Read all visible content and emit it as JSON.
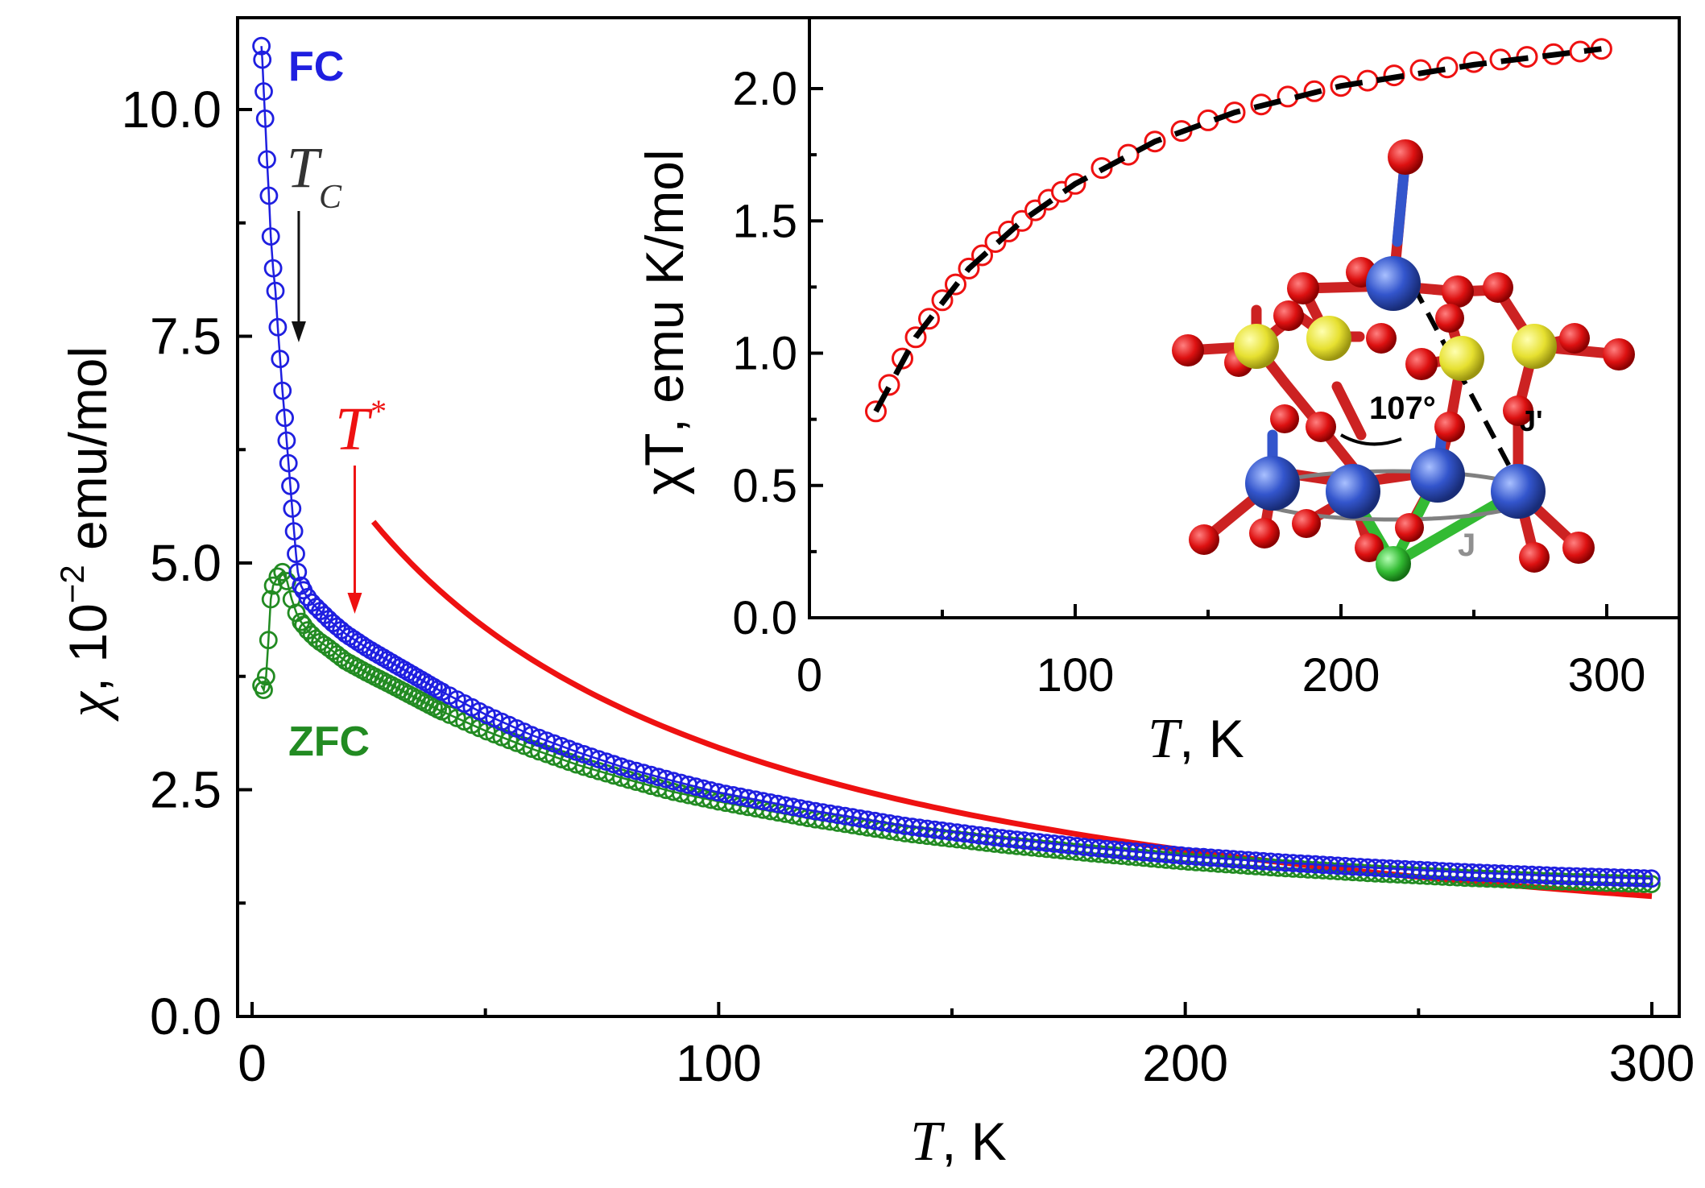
{
  "chart_data": [
    {
      "type": "scatter",
      "panel": "main",
      "xlabel_symbol": "T",
      "xlabel_unit": ", K",
      "ylabel_symbol": "χ",
      "ylabel_unit": ", 10",
      "ylabel_exp": "−2",
      "ylabel_tail": " emu/mol",
      "xlim": [
        0,
        300
      ],
      "ylim": [
        0,
        10.5
      ],
      "xticks": [
        0,
        100,
        200,
        300
      ],
      "xtick_labels": [
        "0",
        "100",
        "200",
        "300"
      ],
      "yticks": [
        0,
        2.5,
        5,
        7.5,
        10
      ],
      "ytick_labels": [
        "0.0",
        "2.5",
        "5.0",
        "7.5",
        "10.0"
      ],
      "series": [
        {
          "name": "FC",
          "color": "#1f1fe0",
          "points": [
            [
              2,
              10.7
            ],
            [
              2.2,
              10.55
            ],
            [
              2.5,
              10.2
            ],
            [
              2.8,
              9.9
            ],
            [
              3.2,
              9.45
            ],
            [
              3.6,
              9.05
            ],
            [
              4,
              8.6
            ],
            [
              4.5,
              8.25
            ],
            [
              5,
              8.0
            ],
            [
              5.5,
              7.6
            ],
            [
              6,
              7.25
            ],
            [
              6.5,
              6.9
            ],
            [
              7,
              6.6
            ],
            [
              7.4,
              6.35
            ],
            [
              7.8,
              6.1
            ],
            [
              8.2,
              5.85
            ],
            [
              8.6,
              5.6
            ],
            [
              9,
              5.35
            ],
            [
              9.4,
              5.1
            ],
            [
              9.8,
              4.9
            ],
            [
              10.5,
              4.75
            ],
            [
              11.5,
              4.65
            ],
            [
              13,
              4.55
            ],
            [
              15,
              4.45
            ],
            [
              17,
              4.35
            ],
            [
              20,
              4.22
            ],
            [
              25,
              4.05
            ],
            [
              30,
              3.9
            ],
            [
              40,
              3.6
            ],
            [
              50,
              3.33
            ],
            [
              60,
              3.1
            ],
            [
              70,
              2.91
            ],
            [
              80,
              2.74
            ],
            [
              90,
              2.6
            ],
            [
              100,
              2.47
            ],
            [
              120,
              2.27
            ],
            [
              140,
              2.1
            ],
            [
              160,
              1.97
            ],
            [
              180,
              1.86
            ],
            [
              200,
              1.77
            ],
            [
              220,
              1.7
            ],
            [
              240,
              1.64
            ],
            [
              260,
              1.59
            ],
            [
              280,
              1.55
            ],
            [
              300,
              1.52
            ]
          ]
        },
        {
          "name": "ZFC",
          "color": "#228b22",
          "points": [
            [
              2,
              3.65
            ],
            [
              2.5,
              3.6
            ],
            [
              3,
              3.75
            ],
            [
              3.5,
              4.15
            ],
            [
              4,
              4.6
            ],
            [
              4.5,
              4.75
            ],
            [
              5.5,
              4.85
            ],
            [
              6.5,
              4.9
            ],
            [
              7.5,
              4.8
            ],
            [
              8.5,
              4.6
            ],
            [
              9.5,
              4.45
            ],
            [
              10.5,
              4.35
            ],
            [
              12,
              4.25
            ],
            [
              14,
              4.15
            ],
            [
              16,
              4.08
            ],
            [
              18,
              4.0
            ],
            [
              20,
              3.92
            ],
            [
              25,
              3.78
            ],
            [
              30,
              3.65
            ],
            [
              40,
              3.38
            ],
            [
              50,
              3.15
            ],
            [
              60,
              2.95
            ],
            [
              70,
              2.77
            ],
            [
              80,
              2.62
            ],
            [
              90,
              2.48
            ],
            [
              100,
              2.37
            ],
            [
              120,
              2.18
            ],
            [
              140,
              2.02
            ],
            [
              160,
              1.9
            ],
            [
              180,
              1.8
            ],
            [
              200,
              1.71
            ],
            [
              220,
              1.64
            ],
            [
              240,
              1.58
            ],
            [
              260,
              1.53
            ],
            [
              280,
              1.49
            ],
            [
              300,
              1.46
            ]
          ]
        },
        {
          "name": "fit",
          "type": "line",
          "color": "#ee1111",
          "C": 480,
          "x_start": 26,
          "x_end": 300
        }
      ],
      "annotations": {
        "fc_label": "FC",
        "zfc_label": "ZFC",
        "tc_symbol": "T",
        "tc_sub": "C",
        "tstar_symbol": "T",
        "tstar_sup": "*",
        "tc_arrow_at": 10,
        "tstar_arrow_at": 22
      }
    },
    {
      "type": "scatter",
      "panel": "inset",
      "xlabel_symbol": "T",
      "xlabel_unit": ", K",
      "ylabel_symbol": "χT",
      "ylabel_unit": ", emu K/mol",
      "xlim": [
        0,
        320
      ],
      "ylim": [
        0,
        2.2
      ],
      "xticks": [
        0,
        100,
        200,
        300
      ],
      "xtick_labels": [
        "0",
        "100",
        "200",
        "300"
      ],
      "yticks": [
        0,
        0.5,
        1,
        1.5,
        2
      ],
      "ytick_labels": [
        "0.0",
        "0.5",
        "1.0",
        "1.5",
        "2.0"
      ],
      "series": [
        {
          "name": "χT data",
          "color": "#ee1111",
          "points": [
            [
              25,
              0.78
            ],
            [
              30,
              0.88
            ],
            [
              35,
              0.98
            ],
            [
              40,
              1.06
            ],
            [
              45,
              1.13
            ],
            [
              50,
              1.2
            ],
            [
              55,
              1.26
            ],
            [
              60,
              1.32
            ],
            [
              65,
              1.37
            ],
            [
              70,
              1.42
            ],
            [
              75,
              1.46
            ],
            [
              80,
              1.5
            ],
            [
              85,
              1.54
            ],
            [
              90,
              1.58
            ],
            [
              95,
              1.61
            ],
            [
              100,
              1.64
            ],
            [
              110,
              1.7
            ],
            [
              120,
              1.75
            ],
            [
              130,
              1.8
            ],
            [
              140,
              1.84
            ],
            [
              150,
              1.88
            ],
            [
              160,
              1.91
            ],
            [
              170,
              1.94
            ],
            [
              180,
              1.97
            ],
            [
              190,
              1.99
            ],
            [
              200,
              2.01
            ],
            [
              210,
              2.03
            ],
            [
              220,
              2.05
            ],
            [
              230,
              2.07
            ],
            [
              240,
              2.08
            ],
            [
              250,
              2.1
            ],
            [
              260,
              2.11
            ],
            [
              270,
              2.12
            ],
            [
              280,
              2.13
            ],
            [
              290,
              2.14
            ],
            [
              298,
              2.15
            ]
          ]
        },
        {
          "name": "fit",
          "type": "line",
          "style": "dashed",
          "color": "#000000",
          "points": [
            [
              25,
              0.78
            ],
            [
              40,
              1.06
            ],
            [
              60,
              1.32
            ],
            [
              80,
              1.5
            ],
            [
              100,
              1.64
            ],
            [
              130,
              1.8
            ],
            [
              160,
              1.91
            ],
            [
              200,
              2.01
            ],
            [
              250,
              2.09
            ],
            [
              298,
              2.15
            ]
          ]
        }
      ]
    }
  ],
  "structure": {
    "angle_label": "107°",
    "j_label": "J",
    "jprime_label": "J'",
    "colors": {
      "oxygen": "#dd1111",
      "metal": "#3355cc",
      "sulfur": "#e6e030",
      "chlorine": "#33bb33"
    }
  }
}
